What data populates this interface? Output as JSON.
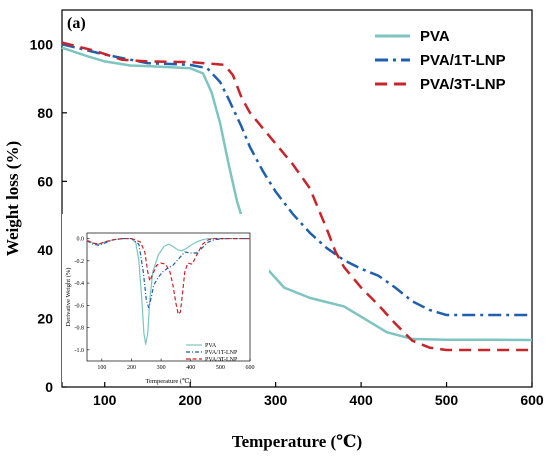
{
  "chart_data": [
    {
      "type": "line",
      "panel_label": "(a)",
      "xlabel": "Temperature (℃)",
      "ylabel": "Weight loss (%)",
      "xlim": [
        50,
        600
      ],
      "ylim": [
        0,
        110
      ],
      "xticks": [
        100,
        200,
        300,
        400,
        500,
        600
      ],
      "yticks": [
        0,
        20,
        40,
        60,
        80,
        100
      ],
      "legend_position": "top-right",
      "series": [
        {
          "name": "PVA",
          "color": "#7ec4c1",
          "dash": "solid",
          "x": [
            50,
            80,
            100,
            130,
            160,
            200,
            215,
            225,
            235,
            245,
            255,
            265,
            275,
            290,
            310,
            340,
            380,
            400,
            430,
            460,
            500,
            550,
            600
          ],
          "y": [
            99,
            96.5,
            95,
            93.8,
            93.5,
            93,
            91.5,
            86,
            77,
            65,
            54,
            46,
            40.5,
            34.5,
            29,
            26,
            23.5,
            20.5,
            16,
            14,
            13.8,
            13.8,
            13.7
          ]
        },
        {
          "name": "PVA/1T-LNP",
          "color": "#1f5fae",
          "dash": "dashdot",
          "x": [
            50,
            100,
            150,
            200,
            220,
            235,
            245,
            260,
            270,
            285,
            300,
            320,
            340,
            360,
            380,
            400,
            420,
            440,
            460,
            480,
            500,
            550,
            600
          ],
          "y": [
            100,
            97,
            94.5,
            94,
            93,
            89,
            84,
            76,
            70,
            63,
            57,
            50.5,
            45,
            40.5,
            37,
            34.5,
            32.5,
            29,
            25,
            22.5,
            21,
            21,
            21
          ]
        },
        {
          "name": "PVA/3T-LNP",
          "color": "#c8242b",
          "dash": "dash",
          "x": [
            50,
            90,
            120,
            150,
            200,
            240,
            250,
            260,
            270,
            280,
            300,
            320,
            340,
            360,
            370,
            380,
            400,
            420,
            440,
            460,
            480,
            500,
            550,
            600
          ],
          "y": [
            100.5,
            98,
            95.5,
            95,
            94.8,
            94,
            91,
            84.5,
            80,
            77,
            71,
            65,
            58,
            46,
            39.5,
            35,
            29,
            24,
            18.5,
            13.5,
            11.5,
            10.8,
            10.8,
            10.8
          ]
        }
      ]
    },
    {
      "type": "line",
      "xlabel": "Temperature (℃)",
      "ylabel": "Derivative Weight (%)",
      "xlim": [
        50,
        600
      ],
      "ylim": [
        -1.1,
        0.05
      ],
      "xticks": [
        100,
        200,
        300,
        400,
        500,
        600
      ],
      "yticks": [
        0.0,
        -0.2,
        -0.4,
        -0.6,
        -0.8,
        -1.0
      ],
      "ytick_labels": [
        "0.0",
        "-0.2",
        "-0.4",
        "-0.6",
        "-0.8",
        "-1.0"
      ],
      "legend_position": "bottom-right",
      "series": [
        {
          "name": "PVA",
          "color": "#7ec4c1",
          "dash": "solid",
          "x": [
            50,
            70,
            90,
            110,
            140,
            170,
            200,
            215,
            225,
            235,
            242,
            248,
            255,
            262,
            272,
            290,
            310,
            325,
            340,
            355,
            370,
            385,
            400,
            420,
            440,
            460,
            500,
            560,
            600
          ],
          "y": [
            -0.01,
            -0.04,
            -0.05,
            -0.03,
            -0.01,
            0,
            0,
            -0.04,
            -0.2,
            -0.55,
            -0.85,
            -0.95,
            -0.85,
            -0.55,
            -0.3,
            -0.15,
            -0.07,
            -0.05,
            -0.07,
            -0.1,
            -0.11,
            -0.09,
            -0.06,
            -0.03,
            -0.01,
            0,
            0,
            0,
            0
          ]
        },
        {
          "name": "PVA/1T-LNP",
          "color": "#1f5fae",
          "dash": "dashdot",
          "x": [
            50,
            70,
            90,
            110,
            140,
            170,
            200,
            225,
            240,
            250,
            258,
            265,
            275,
            290,
            305,
            320,
            340,
            360,
            380,
            400,
            420,
            440,
            460,
            480,
            520,
            600
          ],
          "y": [
            -0.02,
            -0.05,
            -0.06,
            -0.04,
            -0.01,
            0,
            0,
            -0.05,
            -0.3,
            -0.55,
            -0.62,
            -0.55,
            -0.42,
            -0.35,
            -0.3,
            -0.27,
            -0.24,
            -0.18,
            -0.12,
            -0.13,
            -0.13,
            -0.08,
            -0.03,
            -0.01,
            0,
            0
          ]
        },
        {
          "name": "PVA/3T-LNP",
          "color": "#c8242b",
          "dash": "dash",
          "x": [
            50,
            70,
            90,
            110,
            140,
            170,
            200,
            230,
            245,
            255,
            262,
            270,
            285,
            300,
            315,
            330,
            340,
            350,
            358,
            365,
            372,
            380,
            390,
            405,
            420,
            440,
            460,
            480,
            520,
            600
          ],
          "y": [
            -0.02,
            -0.04,
            -0.05,
            -0.03,
            -0.01,
            0,
            0,
            -0.03,
            -0.12,
            -0.3,
            -0.38,
            -0.33,
            -0.24,
            -0.22,
            -0.23,
            -0.3,
            -0.42,
            -0.58,
            -0.68,
            -0.66,
            -0.5,
            -0.3,
            -0.22,
            -0.23,
            -0.15,
            -0.05,
            -0.01,
            0,
            0,
            0
          ]
        }
      ]
    }
  ]
}
